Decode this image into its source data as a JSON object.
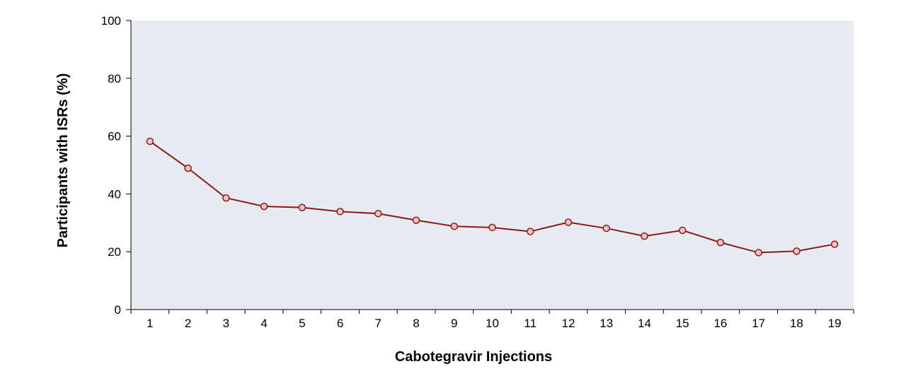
{
  "chart_data": {
    "type": "line",
    "title": "",
    "xlabel": "Cabotegravir Injections",
    "ylabel": "Participants with ISRs (%)",
    "categories": [
      "1",
      "2",
      "3",
      "4",
      "5",
      "6",
      "7",
      "8",
      "9",
      "10",
      "11",
      "12",
      "13",
      "14",
      "15",
      "16",
      "17",
      "18",
      "19"
    ],
    "series": [
      {
        "values": [
          58.2,
          48.9,
          38.6,
          35.7,
          35.3,
          33.9,
          33.2,
          30.9,
          28.8,
          28.4,
          27.0,
          30.2,
          28.1,
          25.4,
          27.4,
          23.2,
          19.7,
          20.2,
          22.6
        ]
      }
    ],
    "ylim": [
      0,
      100
    ],
    "yticks": [
      0,
      20,
      40,
      60,
      80,
      100
    ],
    "grid": false,
    "legend": "none",
    "colors": {
      "plot_background": "#e6eaf1",
      "line": "#8b1a1a",
      "marker_fill": "#f2c2c2",
      "marker_stroke": "#8b1a1a",
      "axis": "#000000"
    }
  }
}
